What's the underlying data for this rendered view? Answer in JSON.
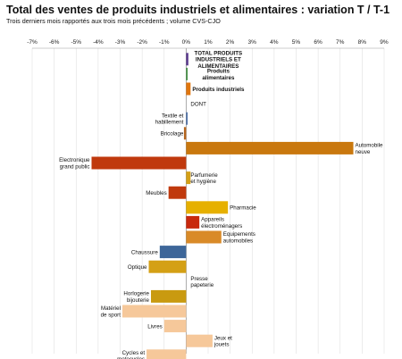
{
  "title": "Total des ventes de produits industriels et alimentaires : variation T / T-1",
  "subtitle": "Trois derniers mois rapportés aux trois mois précédents ; volume CVS-CJO",
  "chart_data": {
    "type": "bar",
    "orientation": "horizontal",
    "xlim": [
      -7,
      9
    ],
    "x_ticks": [
      "-7%",
      "-6%",
      "-5%",
      "-4%",
      "-3%",
      "-2%",
      "-1%",
      "0%",
      "1%",
      "2%",
      "3%",
      "4%",
      "5%",
      "6%",
      "7%",
      "8%",
      "9%"
    ],
    "grid": true,
    "categories": [
      {
        "label": [
          "TOTAL PRODUITS",
          "INDUSTRIELS ET",
          "ALIMENTAIRES"
        ],
        "value": 0.1,
        "color": "#5b3a8e",
        "bold": true
      },
      {
        "label": [
          "Produits",
          "alimentaires"
        ],
        "value": 0.05,
        "color": "#3f8f3f",
        "bold": true
      },
      {
        "label": [
          "Produits industriels"
        ],
        "value": 0.2,
        "color": "#e0760e",
        "bold": true
      },
      {
        "label": [
          "DONT"
        ],
        "value": 0,
        "color": "#ffffff",
        "bold": false
      },
      {
        "label": [
          "Textile et",
          "habillement"
        ],
        "value": 0.05,
        "color": "#4a6fa8",
        "bold": false
      },
      {
        "label": [
          "Bricolage"
        ],
        "value": -0.1,
        "color": "#b5651d",
        "bold": false
      },
      {
        "label": [
          "Automobile",
          "neuve"
        ],
        "value": 7.6,
        "color": "#c9780e",
        "bold": false
      },
      {
        "label": [
          "Electronique",
          "grand public"
        ],
        "value": -4.3,
        "color": "#c0390d",
        "bold": false
      },
      {
        "label": [
          "Parfumerie",
          "et hygiène"
        ],
        "value": 0.2,
        "color": "#d4a017",
        "bold": false
      },
      {
        "label": [
          "Meubles"
        ],
        "value": -0.8,
        "color": "#c0390d",
        "bold": false
      },
      {
        "label": [
          "Pharmacie"
        ],
        "value": 1.9,
        "color": "#e6b000",
        "bold": false
      },
      {
        "label": [
          "Appareils",
          "électroménagers"
        ],
        "value": 0.6,
        "color": "#c8290d",
        "bold": false
      },
      {
        "label": [
          "Equipements",
          "automobiles"
        ],
        "value": 1.6,
        "color": "#d98a28",
        "bold": false
      },
      {
        "label": [
          "Chaussure"
        ],
        "value": -1.2,
        "color": "#3d6699",
        "bold": false
      },
      {
        "label": [
          "Optique"
        ],
        "value": -1.7,
        "color": "#d4a015",
        "bold": false
      },
      {
        "label": [
          "Presse",
          "papeterie"
        ],
        "value": 0,
        "color": "#c0c0c0",
        "bold": false
      },
      {
        "label": [
          "Horlogerie",
          "bijouterie"
        ],
        "value": -1.6,
        "color": "#c99a10",
        "bold": false
      },
      {
        "label": [
          "Matériel",
          "de sport"
        ],
        "value": -2.9,
        "color": "#f6c89a",
        "bold": false
      },
      {
        "label": [
          "Livres"
        ],
        "value": -1.0,
        "color": "#f6c89a",
        "bold": false
      },
      {
        "label": [
          "Jeux et",
          "jouets"
        ],
        "value": 1.2,
        "color": "#f6c89a",
        "bold": false
      },
      {
        "label": [
          "Cycles et",
          "motocycles"
        ],
        "value": -1.8,
        "color": "#f6c89a",
        "bold": false
      }
    ]
  }
}
